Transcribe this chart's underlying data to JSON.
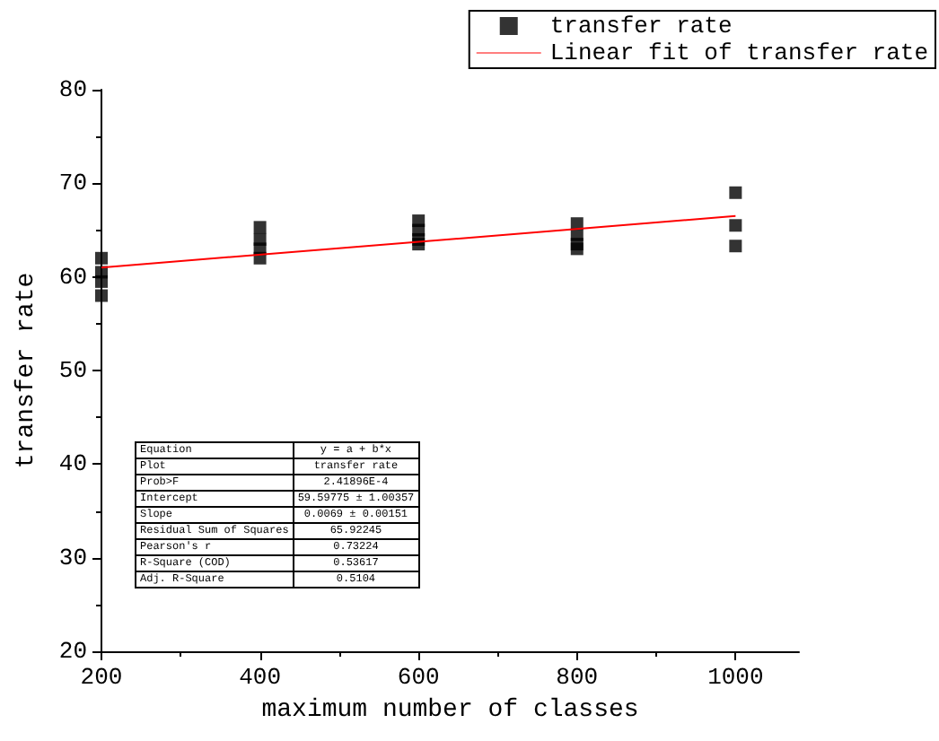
{
  "chart_data": {
    "type": "scatter",
    "xlabel": "maximum number of classes",
    "ylabel": "transfer rate",
    "xlim": [
      200,
      1080
    ],
    "xticks": [
      200,
      400,
      600,
      800,
      1000
    ],
    "ylim": [
      20,
      80
    ],
    "yticks": [
      20,
      30,
      40,
      50,
      60,
      70,
      80
    ],
    "grid": false,
    "legend": "top right",
    "marker": "square",
    "series": [
      {
        "name": "transfer rate",
        "color": "#000000",
        "x": [
          200,
          200,
          200,
          200,
          400,
          400,
          400,
          400,
          600,
          600,
          600,
          600,
          800,
          800,
          800,
          800,
          1000,
          1000,
          1000
        ],
        "values": [
          62,
          60.5,
          59.5,
          58,
          65.3,
          64,
          63,
          62,
          66,
          65,
          64,
          63.5,
          65.7,
          64.5,
          63.5,
          63,
          69,
          65.5,
          63.3
        ]
      },
      {
        "name": "Linear fit of transfer rate",
        "type": "line",
        "color": "#ff0000",
        "marker": "none",
        "line_style": "solid",
        "x": [
          200,
          1000
        ],
        "values": [
          61,
          66.5
        ]
      }
    ],
    "annotations": [
      "Equation",
      "y = a + b*x",
      "Plot",
      "transfer rate",
      "Prob>F",
      "2.41896E-4",
      "Intercept",
      "59.59775 ± 1.00357",
      "Slope",
      "0.0069 ± 0.00151",
      "Residual Sum of Squares",
      "65.92245",
      "Pearson's r",
      "0.73224",
      "R-Square (COD)",
      "0.53617",
      "Adj. R-Square",
      "0.5104"
    ]
  }
}
